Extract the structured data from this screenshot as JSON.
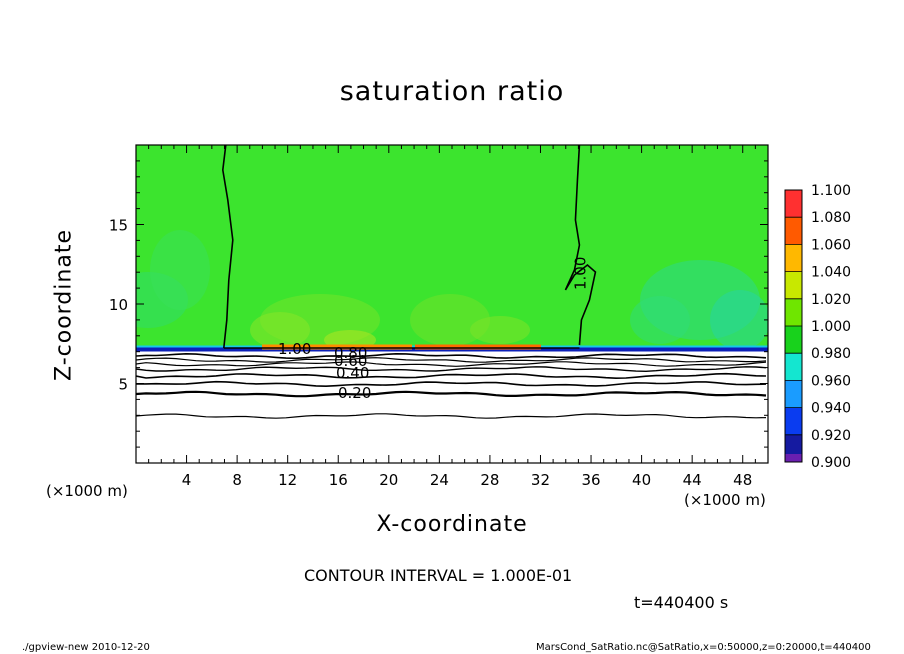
{
  "title": "saturation ratio",
  "x_unit_label_left": "(×1000 m)",
  "x_unit_label_right": "(×1000 m)",
  "contour_interval_text": "CONTOUR INTERVAL = 1.000E-01",
  "time_text": "t=440400 s",
  "footer_left": "./gpview-new  2010-12-20",
  "footer_right": "MarsCond_SatRatio.nc@SatRatio,x=0:50000,z=0:20000,t=440400",
  "chart_data": {
    "type": "heatmap",
    "title": "saturation ratio",
    "xlabel": "X-coordinate",
    "ylabel": "Z-coordinate",
    "x_unit": "(×1000 m)",
    "xlim": [
      0,
      50
    ],
    "ylim": [
      0,
      20
    ],
    "x_ticks": [
      4,
      8,
      12,
      16,
      20,
      24,
      28,
      32,
      36,
      40,
      44,
      48
    ],
    "y_ticks": [
      5,
      10,
      15
    ],
    "colorbar": {
      "levels": [
        0.9,
        0.92,
        0.94,
        0.96,
        0.98,
        1.0,
        1.02,
        1.04,
        1.06,
        1.08,
        1.1
      ],
      "tick_labels": [
        "0.900",
        "0.920",
        "0.940",
        "0.960",
        "0.980",
        "1.000",
        "1.020",
        "1.040",
        "1.060",
        "1.080",
        "1.100"
      ],
      "colors": [
        "#6a0dad",
        "#1a1aa8",
        "#0033ee",
        "#1aa0ff",
        "#11e8d4",
        "#18d21c",
        "#66e600",
        "#b8e600",
        "#ffb000",
        "#ff5000",
        "#ff3838",
        "#ff9898"
      ]
    },
    "field": {
      "below_color": "#ffffff",
      "upper_layer_color": "#3ce42e",
      "layer_top_z": 7.2,
      "cloud_base_band": "#ff8c00"
    },
    "contours": {
      "interval": 0.1,
      "labels": [
        "1.00",
        "0.20",
        "0.40",
        "0.60",
        "0.80",
        "1.00"
      ],
      "saturation_boundary_z": 7.2,
      "vertical_1_00_x": [
        7.5,
        33.5
      ]
    },
    "time": "t=440400 s"
  }
}
